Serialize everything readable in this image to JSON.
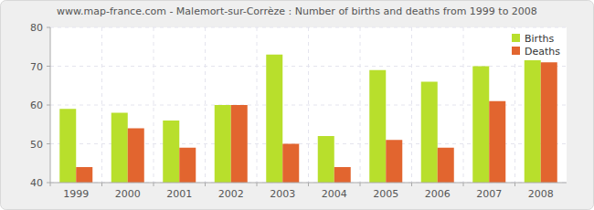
{
  "chart_data": {
    "type": "bar",
    "title": "www.map-france.com - Malemort-sur-Corrèze : Number of births and deaths from 1999 to 2008",
    "categories": [
      "1999",
      "2000",
      "2001",
      "2002",
      "2003",
      "2004",
      "2005",
      "2006",
      "2007",
      "2008"
    ],
    "series": [
      {
        "name": "Births",
        "color": "#b8df2c",
        "values": [
          59,
          58,
          56,
          60,
          73,
          52,
          69,
          66,
          70,
          72
        ]
      },
      {
        "name": "Deaths",
        "color": "#e2652f",
        "values": [
          44,
          54,
          49,
          60,
          50,
          44,
          51,
          49,
          61,
          71
        ]
      }
    ],
    "ylim": [
      40,
      80
    ],
    "yticks": [
      40,
      50,
      60,
      70,
      80
    ],
    "grid": true,
    "legend": "top-right"
  }
}
